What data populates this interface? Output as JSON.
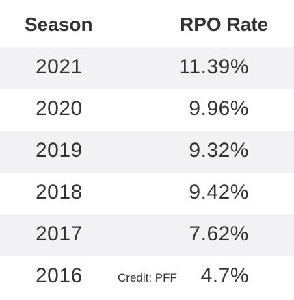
{
  "header": {
    "season_label": "Season",
    "rate_label": "RPO Rate"
  },
  "rows": [
    {
      "season": "2021",
      "rate": "11.39%"
    },
    {
      "season": "2020",
      "rate": "9.96%"
    },
    {
      "season": "2019",
      "rate": "9.32%"
    },
    {
      "season": "2018",
      "rate": "9.42%"
    },
    {
      "season": "2017",
      "rate": "7.62%"
    },
    {
      "season": "2016",
      "rate": "4.7%"
    }
  ],
  "credit": "Credit: PFF",
  "colors": {
    "shaded_row": "#f2f2f4",
    "text": "#333333"
  }
}
